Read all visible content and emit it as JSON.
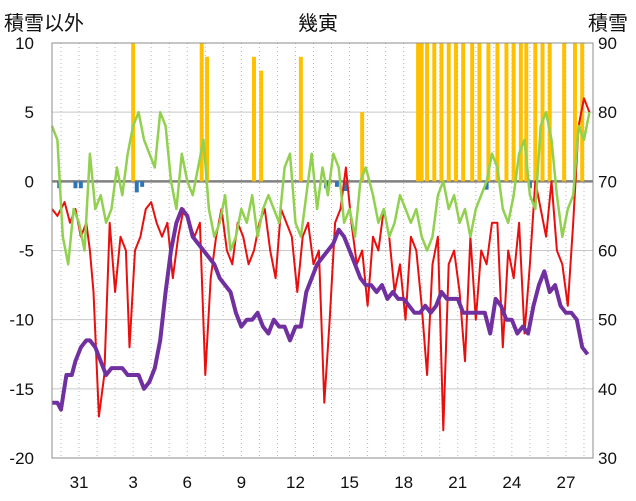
{
  "chart_data": {
    "type": "line",
    "title": "幾寅",
    "left_axis_label": "積雪以外",
    "right_axis_label": "積雪",
    "y_left_ticks": [
      "10",
      "5",
      "0",
      "-5",
      "-10",
      "-15",
      "-20"
    ],
    "y_right_ticks": [
      "90",
      "80",
      "70",
      "60",
      "50",
      "40",
      "30"
    ],
    "x_ticks": [
      "31",
      "3",
      "6",
      "9",
      "12",
      "15",
      "18",
      "21",
      "24",
      "27"
    ],
    "ylim_left": [
      -20,
      10
    ],
    "ylim_right": [
      30,
      90
    ],
    "x_range_days": [
      0,
      30
    ],
    "x_tick_positions_days": [
      1.5,
      4.5,
      7.5,
      10.5,
      13.5,
      16.5,
      19.5,
      22.5,
      25.5,
      28.5
    ],
    "grid": "vertical dotted daily lines, horizontal lines every 5",
    "colors": {
      "temperature": "#e8100f",
      "snow_depth": "#7030a0",
      "humidity_like": "#92d050",
      "precip_positive": "#ffc000",
      "precip_negative": "#2e75b6",
      "zero_line": "#808080"
    },
    "series": [
      {
        "axis": "left",
        "color": "#e8100f",
        "x": [
          0,
          0.3,
          0.7,
          1,
          1.3,
          1.6,
          1.9,
          2.1,
          2.3,
          2.6,
          2.9,
          3.2,
          3.5,
          3.8,
          4.1,
          4.3,
          4.6,
          4.9,
          5.2,
          5.5,
          5.8,
          6.1,
          6.4,
          6.7,
          7,
          7.3,
          7.6,
          7.9,
          8.2,
          8.5,
          8.8,
          9.1,
          9.4,
          9.7,
          10,
          10.3,
          10.6,
          10.9,
          11.2,
          11.5,
          11.8,
          12.1,
          12.4,
          12.7,
          13,
          13.3,
          13.6,
          13.9,
          14.2,
          14.5,
          14.8,
          15.1,
          15.4,
          15.7,
          16,
          16.3,
          16.6,
          16.9,
          17.2,
          17.5,
          17.8,
          18.1,
          18.4,
          18.7,
          19,
          19.3,
          19.6,
          19.9,
          20.2,
          20.5,
          20.8,
          21.1,
          21.4,
          21.7,
          22,
          22.3,
          22.6,
          22.9,
          23.2,
          23.5,
          23.8,
          24.1,
          24.4,
          24.7,
          25,
          25.3,
          25.6,
          25.9,
          26.2,
          26.5,
          26.8,
          27.1,
          27.4,
          27.7,
          28,
          28.3,
          28.6,
          28.9,
          29.2,
          29.5,
          29.8
        ],
        "values": [
          -2,
          -2.5,
          -1.5,
          -3,
          -2,
          -4,
          -3,
          -5,
          -8,
          -17,
          -14,
          -3,
          -8,
          -4,
          -5,
          -12,
          -5,
          -4,
          -2,
          -1.5,
          -3,
          -4,
          -3,
          -7,
          -4,
          -2,
          -3,
          -4,
          -3,
          -14,
          -7,
          -4,
          -2,
          -5,
          -6,
          -3,
          -4,
          -6,
          -5,
          -3,
          -2,
          -5,
          -7,
          -2,
          -3,
          -4,
          -8,
          -4,
          -3,
          -6,
          -5,
          -16,
          -10,
          -3,
          -2,
          1,
          -3,
          -6,
          -5,
          -9,
          -4,
          -5,
          -2,
          -4,
          -8,
          -6,
          -10,
          -4,
          -5,
          -9,
          -14,
          -6,
          -4,
          -18,
          -6,
          -5,
          -8,
          -13,
          -4,
          -10,
          -5,
          -6,
          -3,
          -3,
          -12,
          -5,
          -7,
          -3,
          -11,
          -6,
          0,
          -2,
          -4,
          0,
          -5,
          -6,
          -9,
          -3,
          4,
          6,
          5
        ]
      },
      {
        "axis": "right",
        "color": "#7030a0",
        "x": [
          0,
          0.3,
          0.5,
          0.8,
          1.1,
          1.3,
          1.6,
          1.9,
          2.1,
          2.4,
          2.7,
          3,
          3.3,
          3.6,
          3.9,
          4.2,
          4.5,
          4.8,
          5.1,
          5.4,
          5.7,
          6,
          6.3,
          6.6,
          6.9,
          7.2,
          7.5,
          7.8,
          8.1,
          8.4,
          8.7,
          9,
          9.3,
          9.6,
          9.9,
          10.2,
          10.5,
          10.8,
          11.1,
          11.4,
          11.7,
          12,
          12.3,
          12.6,
          12.9,
          13.2,
          13.5,
          13.8,
          14.1,
          14.4,
          14.7,
          15,
          15.3,
          15.6,
          15.9,
          16.2,
          16.5,
          16.8,
          17.1,
          17.4,
          17.7,
          18,
          18.3,
          18.6,
          18.9,
          19.2,
          19.5,
          19.8,
          20.1,
          20.4,
          20.7,
          21,
          21.3,
          21.6,
          21.9,
          22.2,
          22.5,
          22.8,
          23.1,
          23.4,
          23.7,
          24,
          24.3,
          24.6,
          24.9,
          25.2,
          25.5,
          25.8,
          26.1,
          26.4,
          26.7,
          27,
          27.3,
          27.6,
          27.9,
          28.2,
          28.5,
          28.8,
          29.1,
          29.4,
          29.7
        ],
        "values": [
          38,
          38,
          37,
          42,
          42,
          44,
          46,
          47,
          47,
          46,
          44,
          42,
          43,
          43,
          43,
          42,
          42,
          42,
          40,
          41,
          43,
          47,
          54,
          60,
          64,
          66,
          65,
          62,
          61,
          60,
          59,
          58,
          56,
          55,
          54,
          51,
          49,
          50,
          50,
          51,
          49,
          48,
          50,
          49,
          49,
          47,
          49,
          49,
          54,
          56,
          58,
          59,
          60,
          61,
          63,
          62,
          60,
          58,
          56,
          55,
          55,
          54,
          55,
          53,
          54,
          53,
          53,
          52,
          51,
          51,
          52,
          51,
          52,
          54,
          53,
          53,
          53,
          51,
          51,
          51,
          51,
          51,
          48,
          53,
          52,
          50,
          50,
          48,
          49,
          48,
          52,
          55,
          57,
          54,
          55,
          52,
          51,
          51,
          50,
          46,
          45
        ]
      },
      {
        "axis": "left",
        "color": "#92d050",
        "x": [
          0,
          0.3,
          0.6,
          0.9,
          1.2,
          1.5,
          1.8,
          2.1,
          2.4,
          2.7,
          3,
          3.3,
          3.6,
          3.9,
          4.2,
          4.5,
          4.8,
          5.1,
          5.4,
          5.7,
          6,
          6.3,
          6.6,
          6.9,
          7.2,
          7.5,
          7.8,
          8.1,
          8.4,
          8.7,
          9,
          9.3,
          9.6,
          9.9,
          10.2,
          10.5,
          10.8,
          11.1,
          11.4,
          11.7,
          12,
          12.3,
          12.6,
          12.9,
          13.2,
          13.5,
          13.8,
          14.1,
          14.4,
          14.7,
          15,
          15.3,
          15.6,
          15.9,
          16.2,
          16.5,
          16.8,
          17.1,
          17.4,
          17.8,
          18.1,
          18.4,
          18.7,
          19,
          19.3,
          19.6,
          19.9,
          20.2,
          20.5,
          20.8,
          21.1,
          21.4,
          21.7,
          22,
          22.3,
          22.6,
          22.9,
          23.2,
          23.5,
          23.8,
          24.1,
          24.4,
          24.7,
          25,
          25.3,
          25.6,
          25.9,
          26.2,
          26.5,
          26.8,
          27.1,
          27.4,
          27.7,
          28,
          28.3,
          28.6,
          28.9,
          29.2,
          29.5,
          29.8
        ],
        "values": [
          4,
          3,
          -4,
          -6,
          -2,
          -3,
          -5,
          2,
          -2,
          -1,
          -3,
          -2,
          1,
          -1,
          2,
          4,
          5,
          3,
          2,
          1,
          5,
          4,
          0,
          -2,
          2,
          0,
          -1,
          1,
          3,
          -2,
          -4,
          -3,
          -1,
          -5,
          -4,
          -2,
          -3,
          -1,
          -4,
          -2,
          -1,
          -2,
          -3,
          1,
          2,
          -3,
          -4,
          -1,
          2,
          -2,
          1,
          -1,
          2,
          1,
          -3,
          -2,
          -4,
          0,
          1,
          -1,
          -3,
          -2,
          -4,
          -3,
          -1,
          -2,
          -3,
          -2,
          -4,
          -5,
          -4,
          -1,
          0,
          -2,
          -1,
          -3,
          -2,
          -4,
          -2,
          -1,
          0,
          2,
          1,
          -2,
          -3,
          -1,
          2,
          3,
          -1,
          -2,
          4,
          5,
          3,
          -1,
          -4,
          -2,
          -1,
          4,
          3,
          5
        ]
      }
    ],
    "precipitation": {
      "axis": "left",
      "bars_positive": [
        {
          "x": 4.5,
          "h": 10
        },
        {
          "x": 8.3,
          "h": 10
        },
        {
          "x": 8.6,
          "h": 9
        },
        {
          "x": 11.2,
          "h": 9
        },
        {
          "x": 11.6,
          "h": 8
        },
        {
          "x": 13.8,
          "h": 9
        },
        {
          "x": 17.2,
          "h": 5
        },
        {
          "x": 20.3,
          "h": 10
        },
        {
          "x": 20.5,
          "h": 10
        },
        {
          "x": 20.8,
          "h": 10
        },
        {
          "x": 21.2,
          "h": 10
        },
        {
          "x": 21.6,
          "h": 10
        },
        {
          "x": 22.0,
          "h": 10
        },
        {
          "x": 22.4,
          "h": 10
        },
        {
          "x": 22.8,
          "h": 10
        },
        {
          "x": 23.3,
          "h": 10
        },
        {
          "x": 23.7,
          "h": 10
        },
        {
          "x": 24.2,
          "h": 10
        },
        {
          "x": 24.7,
          "h": 10
        },
        {
          "x": 25.2,
          "h": 10
        },
        {
          "x": 25.6,
          "h": 10
        },
        {
          "x": 26.0,
          "h": 10
        },
        {
          "x": 26.3,
          "h": 10
        },
        {
          "x": 26.8,
          "h": 10
        },
        {
          "x": 27.2,
          "h": 10
        },
        {
          "x": 27.6,
          "h": 10
        },
        {
          "x": 28.4,
          "h": 10
        },
        {
          "x": 29.0,
          "h": 10
        },
        {
          "x": 29.4,
          "h": 10
        }
      ],
      "bars_negative": [
        {
          "x": 0.4,
          "h": -0.5
        },
        {
          "x": 1.3,
          "h": -0.5
        },
        {
          "x": 1.6,
          "h": -0.5
        },
        {
          "x": 4.7,
          "h": -0.8
        },
        {
          "x": 5.0,
          "h": -0.4
        },
        {
          "x": 15.2,
          "h": -0.5
        },
        {
          "x": 15.8,
          "h": -0.4
        },
        {
          "x": 16.3,
          "h": -0.7
        },
        {
          "x": 24.1,
          "h": -0.6
        },
        {
          "x": 26.5,
          "h": -0.5
        }
      ]
    }
  }
}
